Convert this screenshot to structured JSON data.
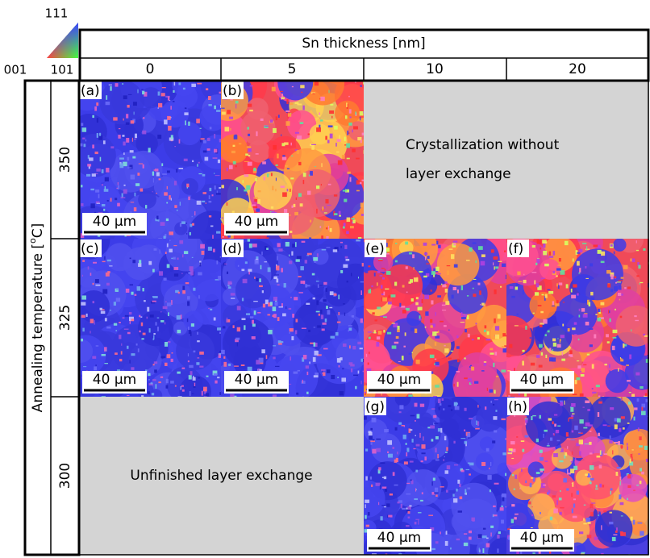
{
  "legend": {
    "top": "111",
    "left": "001",
    "right": "101"
  },
  "header": {
    "title": "Sn thickness [nm]",
    "columns": [
      "0",
      "5",
      "10",
      "20"
    ]
  },
  "row_axis": {
    "label": "Annealing temperature [",
    "superscript": "o",
    "label_end": "C]",
    "rows": [
      "350",
      "325",
      "300"
    ]
  },
  "panels": [
    {
      "label": "(a)",
      "scale_bar": "40 µm"
    },
    {
      "label": "(b)",
      "scale_bar": "40 µm"
    },
    {
      "label": "(c)",
      "scale_bar": "40 µm"
    },
    {
      "label": "(d)",
      "scale_bar": "40 µm"
    },
    {
      "label": "(e)",
      "scale_bar": "40 µm"
    },
    {
      "label": "(f)",
      "scale_bar": "40 µm"
    },
    {
      "label": "(g)",
      "scale_bar": "40 µm"
    },
    {
      "label": "(h)",
      "scale_bar": "40 µm"
    }
  ],
  "notes": [
    {
      "lines": [
        "Crystallization without",
        "layer exchange"
      ]
    },
    {
      "lines": [
        "Unfinished layer exchange"
      ]
    }
  ]
}
